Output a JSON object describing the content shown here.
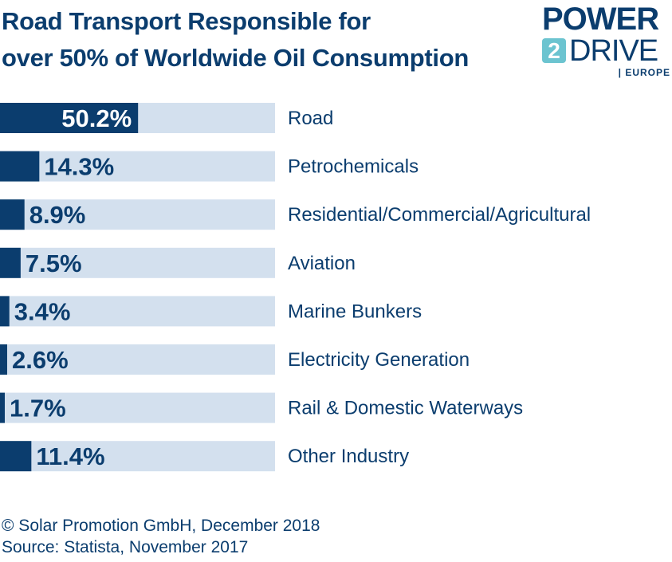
{
  "title": {
    "line1": "Road Transport Responsible for",
    "line2": "over 50% of Worldwide Oil Consumption"
  },
  "logo": {
    "power": "POWER",
    "two": "2",
    "drive": "DRIVE",
    "europe": "| EUROPE"
  },
  "footer": {
    "copyright": "© Solar Promotion GmbH, December 2018",
    "source": "Source: Statista, November 2017"
  },
  "colors": {
    "bar": "#0b3d6e",
    "track": "#d3e0ee",
    "text": "#0b3d6e",
    "value_on_bar": "#ffffff"
  },
  "chart_data": {
    "type": "bar",
    "orientation": "horizontal",
    "xlim": [
      0,
      100
    ],
    "grid": false,
    "categories": [
      "Road",
      "Petrochemicals",
      "Residential/Commercial/Agricultural",
      "Aviation",
      "Marine Bunkers",
      "Electricity Generation",
      "Rail & Domestic Waterways",
      "Other Industry"
    ],
    "values": [
      50.2,
      14.3,
      8.9,
      7.5,
      3.4,
      2.6,
      1.7,
      11.4
    ],
    "value_labels": [
      "50.2%",
      "14.3%",
      "8.9%",
      "7.5%",
      "3.4%",
      "2.6%",
      "1.7%",
      "11.4%"
    ]
  }
}
